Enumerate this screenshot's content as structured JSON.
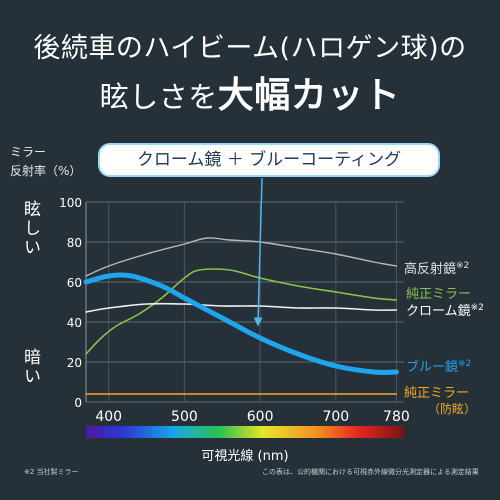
{
  "headline": {
    "line1": "後続車のハイビーム(ハロゲン球)の",
    "line2_pre": "眩しさを",
    "line2_big": "大幅カット"
  },
  "callout": "クローム鏡 ＋ ブルーコーティング",
  "side_labels": {
    "top": "眩しい",
    "bottom": "暗い"
  },
  "footnotes": {
    "left": "※2 当社製ミラー",
    "right": "この表は、公的機関における可視赤外線微分光測定器による測定結果"
  },
  "colors": {
    "background": "#253038",
    "blue_mirror": "#1fa5ee",
    "green_mirror": "#8bc34a",
    "orange_mirror": "#f7a823",
    "gray_mirror": "#b8b8b8",
    "white_mirror": "#f2f2f2"
  },
  "chart_data": {
    "type": "line",
    "ylabel_line1": "ミラー",
    "ylabel_line2": "反射率（%）",
    "xlabel": "可視光線 (nm)",
    "xlim": [
      370,
      790
    ],
    "ylim": [
      0,
      100
    ],
    "x_ticks": [
      400,
      500,
      600,
      700,
      780
    ],
    "y_ticks": [
      0,
      20,
      40,
      60,
      80,
      100
    ],
    "grid": true,
    "series": [
      {
        "name": "高反射鏡",
        "note": "※2",
        "color": "#b8b8b8",
        "x": [
          370,
          400,
          450,
          500,
          530,
          560,
          600,
          650,
          700,
          750,
          780
        ],
        "y": [
          63,
          68,
          74,
          79,
          82,
          81,
          80,
          77,
          74,
          70,
          68
        ]
      },
      {
        "name": "純正ミラー",
        "note": "",
        "color": "#8bc34a",
        "x": [
          370,
          390,
          410,
          440,
          470,
          500,
          520,
          560,
          600,
          650,
          700,
          750,
          780
        ],
        "y": [
          24,
          32,
          38,
          44,
          52,
          62,
          66,
          66,
          62,
          58,
          55,
          52,
          51
        ]
      },
      {
        "name": "クローム鏡",
        "note": "※2",
        "color": "#f2f2f2",
        "x": [
          370,
          400,
          450,
          500,
          550,
          600,
          650,
          700,
          750,
          780
        ],
        "y": [
          45,
          47,
          49,
          49,
          48,
          48,
          47,
          47,
          46,
          46
        ]
      },
      {
        "name": "ブルー鏡",
        "note": "※2",
        "color": "#1fa5ee",
        "x": [
          370,
          400,
          430,
          470,
          500,
          550,
          600,
          650,
          700,
          750,
          780
        ],
        "y": [
          60,
          63,
          63,
          58,
          52,
          42,
          32,
          24,
          18,
          15,
          15
        ]
      },
      {
        "name": "純正ミラー",
        "note": "（防眩）",
        "color": "#f7a823",
        "x": [
          370,
          450,
          550,
          650,
          780
        ],
        "y": [
          4,
          4,
          4,
          4,
          4
        ]
      }
    ]
  }
}
